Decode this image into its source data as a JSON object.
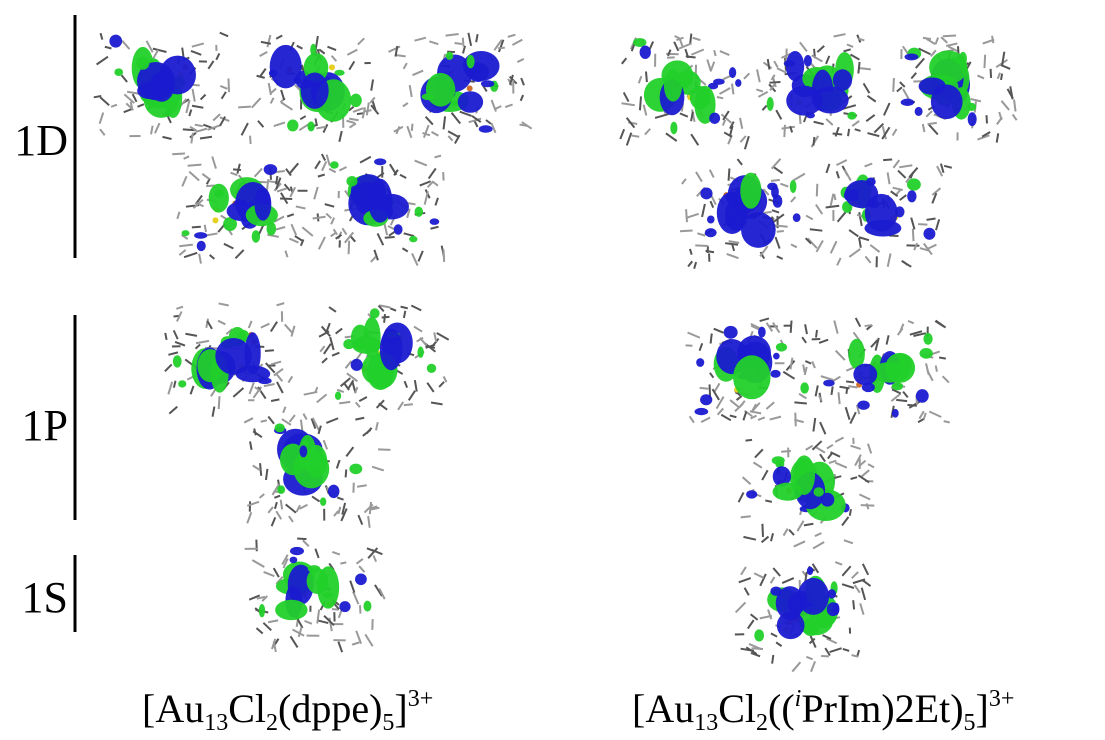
{
  "row_labels": [
    "1D",
    "1P",
    "1S"
  ],
  "captions": [
    {
      "parts": [
        "[Au",
        "13",
        "Cl",
        "2",
        "(dppe)",
        "5",
        "]",
        "3+"
      ]
    },
    {
      "parts": [
        "[Au",
        "13",
        "Cl",
        "2",
        "((",
        "i",
        "PrIm)2Et)",
        "5",
        "]",
        "3+"
      ]
    }
  ]
}
